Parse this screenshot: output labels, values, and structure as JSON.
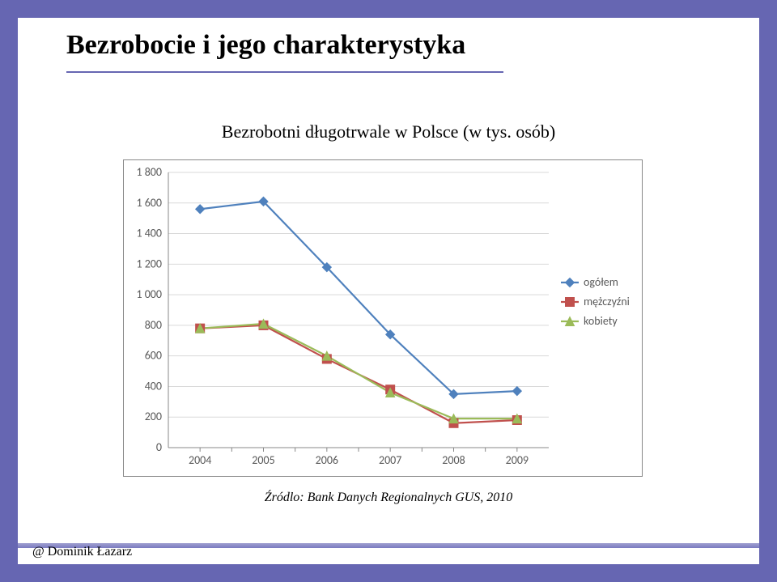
{
  "slide": {
    "border_color": "#6666b2",
    "accent_bar_color": "#7a7ac0",
    "title": "Bezrobocie i jego charakterystyka",
    "title_underline_color": "#6666b2",
    "subtitle": "Bezrobotni długotrwale w Polsce (w tys. osób)",
    "source": "Źródlo: Bank Danych Regionalnych GUS, 2010",
    "footer": "@ Dominik Łazarz"
  },
  "chart": {
    "type": "line",
    "plot_background": "#ffffff",
    "border_color": "#888888",
    "gridline_color": "#d9d9d9",
    "axis_color": "#888888",
    "tick_font_size": 14,
    "tick_color": "#595959",
    "x_categories": [
      "2004",
      "2005",
      "2006",
      "2007",
      "2008",
      "2009"
    ],
    "y": {
      "min": 0,
      "max": 1800,
      "step": 200
    },
    "y_ticks": [
      "0",
      "200",
      "400",
      "600",
      "800",
      "1 000",
      "1 200",
      "1 400",
      "1 600",
      "1 800"
    ],
    "legend": {
      "position": "right",
      "font_size": 14,
      "text_color": "#595959",
      "items": [
        {
          "key": "ogolem",
          "label": "ogółem"
        },
        {
          "key": "mezczyzni",
          "label": "mężczyźni"
        },
        {
          "key": "kobiety",
          "label": "kobiety"
        }
      ]
    },
    "series": {
      "ogolem": {
        "label": "ogółem",
        "color": "#4f81bd",
        "marker": "diamond",
        "marker_size": 7,
        "line_width": 2.2,
        "values": [
          1560,
          1610,
          1180,
          740,
          350,
          370
        ]
      },
      "mezczyzni": {
        "label": "mężczyźni",
        "color": "#c0504d",
        "marker": "square",
        "marker_size": 7,
        "line_width": 2.2,
        "values": [
          780,
          800,
          580,
          380,
          160,
          180
        ]
      },
      "kobiety": {
        "label": "kobiety",
        "color": "#9bbb59",
        "marker": "triangle",
        "marker_size": 7,
        "line_width": 2.2,
        "values": [
          780,
          810,
          600,
          360,
          190,
          190
        ]
      }
    }
  }
}
